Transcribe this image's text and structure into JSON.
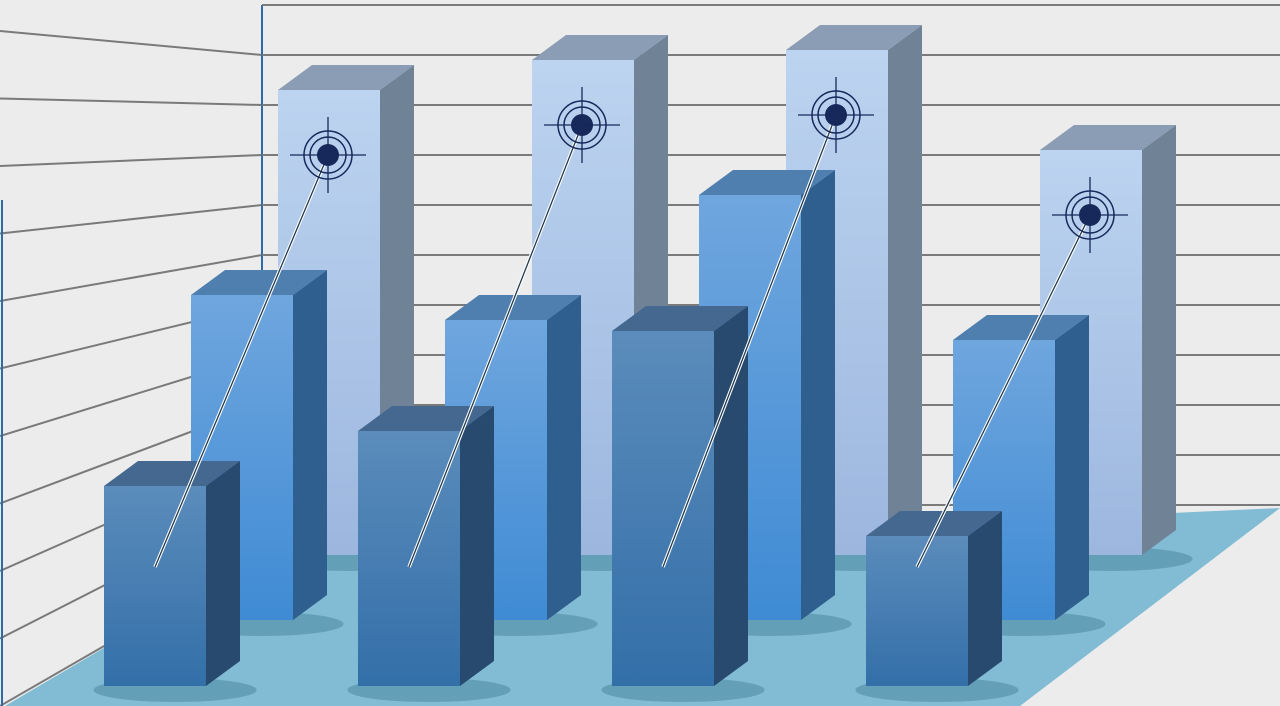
{
  "chart_data": {
    "type": "bar",
    "style": "3d-grouped-illustration",
    "title": "",
    "xlabel": "",
    "ylabel": "",
    "categories": [
      "",
      "",
      "",
      ""
    ],
    "ylim": [
      0,
      11
    ],
    "grid": true,
    "legend": "none",
    "series": [
      {
        "row": "back",
        "color": "#b3cdec",
        "values": [
          9.3,
          9.9,
          10.1,
          8.1
        ]
      },
      {
        "row": "middle",
        "color": "#5a9ad8",
        "values": [
          6.5,
          6.0,
          8.5,
          5.6
        ]
      },
      {
        "row": "front",
        "color": "#4a7fb3",
        "values": [
          4.0,
          5.1,
          7.1,
          3.0
        ]
      }
    ],
    "annotations": {
      "target_markers_on": "back",
      "trend_lines_from": "front"
    },
    "colors": {
      "floor": "#82bcd4",
      "wall": "#ececec",
      "gridline": "#7a7a7a",
      "wall_edge": "#2f6aa8",
      "target": "#17285a"
    }
  }
}
